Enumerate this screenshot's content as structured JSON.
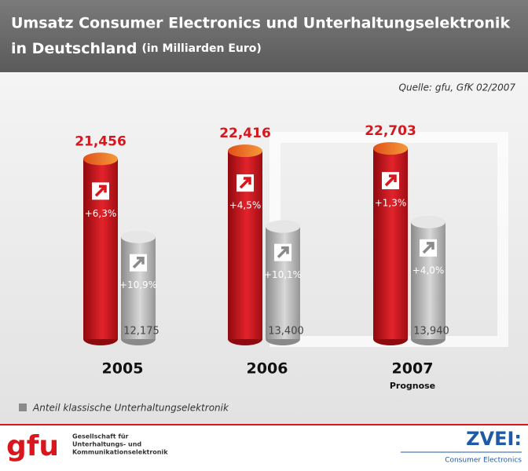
{
  "chart_data": {
    "type": "cylinder",
    "title": "Umsatz Consumer Electronics und Unterhaltungselektronik",
    "title_line2": "in Deutschland",
    "subtitle": "(in Milliarden Euro)",
    "source": "Quelle: gfu, GfK 02/2007",
    "categories": [
      "2005",
      "2006",
      "2007"
    ],
    "category_notes": [
      null,
      null,
      "Prognose"
    ],
    "series": [
      {
        "color": "#d7161e",
        "values": [
          21.456,
          22.416,
          22.703
        ],
        "value_labels": [
          "21,456",
          "22,416",
          "22,703"
        ],
        "growth_labels": [
          "+6,3%",
          "+4,5%",
          "+1,3%"
        ]
      },
      {
        "name": "Anteil klassische Unterhaltungselektronik",
        "color": "#a8a8a8",
        "values": [
          12.175,
          13.4,
          13.94
        ],
        "value_labels": [
          "12,175",
          "13,400",
          "13,940"
        ],
        "growth_labels": [
          "+10,9%",
          "+10,1%",
          "+4,0%"
        ]
      }
    ]
  },
  "footer": {
    "gfu_logo": "gfu",
    "gfu_line1": "Gesellschaft für",
    "gfu_line2": "Unterhaltungs- und",
    "gfu_line3": "Kommunikationselektronik",
    "zvei_logo": "ZVEI:",
    "zvei_sub": "Consumer Electronics"
  }
}
